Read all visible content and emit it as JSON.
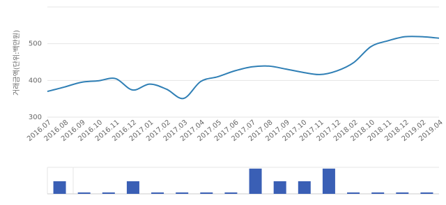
{
  "chart_data": [
    {
      "type": "line",
      "y_label": "거래금액(단위:백만원)",
      "categories": [
        "2016.07",
        "2016.08",
        "2016.09",
        "2016.10",
        "2016.11",
        "2016.12",
        "2017.01",
        "2017.02",
        "2017.03",
        "2017.04",
        "2017.05",
        "2017.06",
        "2017.07",
        "2017.08",
        "2017.09",
        "2017.10",
        "2017.11",
        "2017.12",
        "2018.02",
        "2018.10",
        "2018.11",
        "2018.12",
        "2019.02",
        "2019.04"
      ],
      "values": [
        370,
        382,
        395,
        399,
        405,
        374,
        390,
        376,
        351,
        397,
        410,
        426,
        437,
        439,
        431,
        422,
        416,
        426,
        449,
        492,
        508,
        519,
        519,
        515
      ],
      "color": "#2f7fb5",
      "ylim": [
        300,
        600
      ],
      "yticks": [
        300,
        400,
        500
      ],
      "grid": true
    },
    {
      "type": "bar",
      "values": [
        1,
        0,
        0,
        1,
        0,
        0,
        0,
        0,
        2,
        1,
        1,
        2,
        0,
        0,
        0,
        0
      ],
      "color": "#3a5fb5",
      "ylim": [
        0,
        2.1
      ]
    }
  ]
}
